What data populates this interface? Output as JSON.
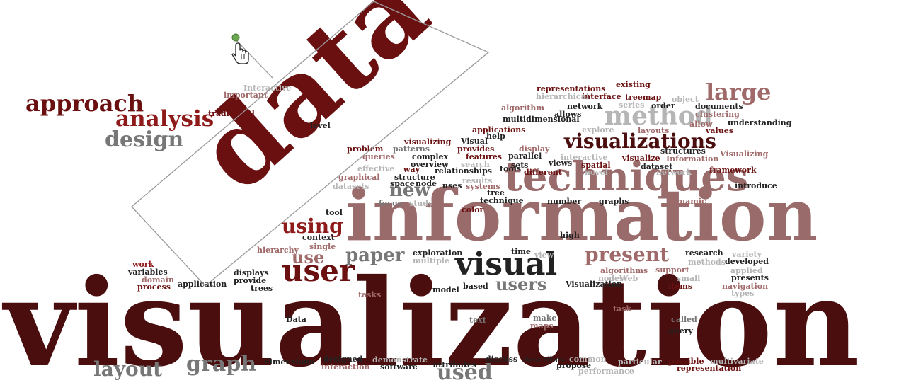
{
  "colors": {
    "dark": "#4a0e0e",
    "deep": "#6b1010",
    "red": "#8e1a1a",
    "rose": "#a06a6a",
    "mauve": "#9a6b6b",
    "gray": "#777777",
    "lightgray": "#b5b5b5",
    "black": "#222222",
    "selection": "#9a9a9a",
    "cursor_dot": "#6aa84f"
  },
  "words": [
    "data",
    "visualization",
    "information",
    "techniques",
    "visualizations",
    "large",
    "method",
    "approach",
    "analysis",
    "design",
    "user",
    "visual",
    "users",
    "paper",
    "present",
    "using",
    "use",
    "new",
    "layout",
    "graph",
    "used",
    "representations",
    "existing",
    "interface",
    "treemap",
    "hierarchical",
    "network",
    "series",
    "order",
    "documents",
    "algorithm",
    "allows",
    "clustering",
    "multidimensional",
    "allow",
    "understanding",
    "applications",
    "explore",
    "layouts",
    "values",
    "visualizing",
    "Visual",
    "provides",
    "display",
    "structures",
    "Visualizing",
    "problem",
    "patterns",
    "features",
    "interactive",
    "visualize",
    "Information",
    "queries",
    "complex",
    "parallel",
    "views",
    "spatial",
    "dataset",
    "overview",
    "search",
    "sets",
    "network",
    "framework",
    "effective",
    "way",
    "relationships",
    "tools",
    "different",
    "graphical",
    "structure",
    "results",
    "novel",
    "introduce",
    "datasets",
    "space",
    "node",
    "uses",
    "systems",
    "tree",
    "focus",
    "study",
    "technique",
    "number",
    "graphs",
    "dynamic",
    "color",
    "tool",
    "context",
    "high",
    "single",
    "hierarchy",
    "exploration",
    "time",
    "view",
    "research",
    "variety",
    "multiple",
    "methods",
    "developed",
    "work",
    "variables",
    "domain",
    "process",
    "displays",
    "provide",
    "trees",
    "application",
    "algorithms",
    "support",
    "applied",
    "presents",
    "small",
    "nodes",
    "Web",
    "items",
    "navigation",
    "types",
    "tasks",
    "model",
    "based",
    "Visualization",
    "task",
    "make",
    "maps",
    "called",
    "query",
    "Data",
    "text",
    "dimensions",
    "designed",
    "interaction",
    "demonstrate",
    "software",
    "attributes",
    "discuss",
    "describes",
    "propose",
    "common",
    "particular",
    "performance",
    "possible",
    "representation",
    "multivariate",
    "important",
    "Interactive",
    "traditional",
    "level",
    "help",
    "object"
  ]
}
